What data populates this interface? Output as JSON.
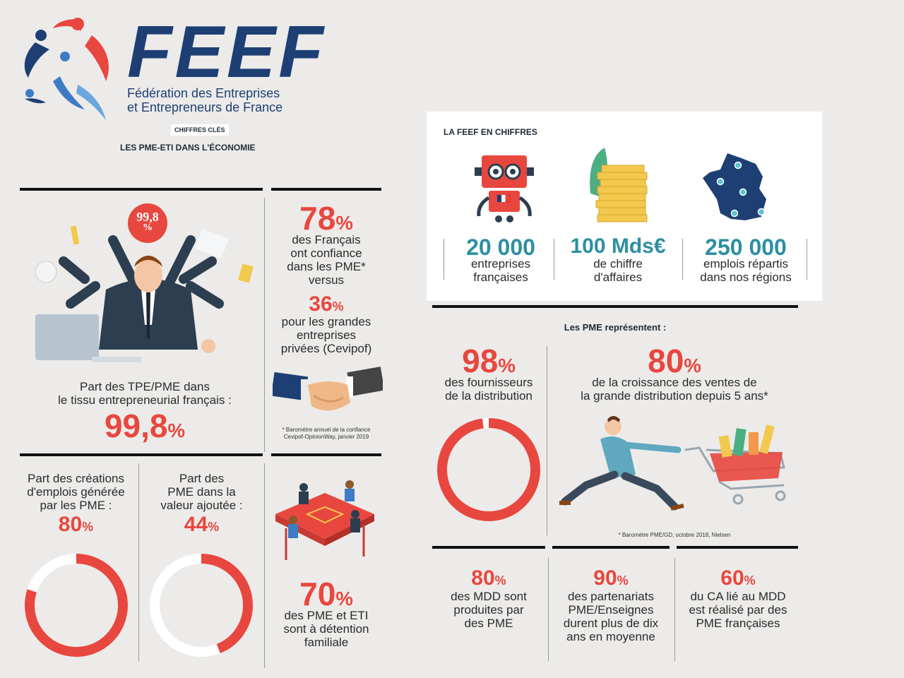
{
  "brand": {
    "name": "FEEF",
    "subtitle_line1": "Fédération des Entreprises",
    "subtitle_line2": "et Entrepreneurs de France"
  },
  "header": {
    "badge": "CHIFFRES CLÉS",
    "title": "LES PME-ETI DANS L'ÉCONOMIE"
  },
  "left": {
    "circle_badge": "99,8",
    "circle_badge_pct": "%",
    "share_label_1": "Part des TPE/PME dans",
    "share_label_2": "le tissu entrepreneurial français :",
    "share_value": "99,8",
    "share_pct": "%",
    "trust_value": "78",
    "trust_pct": "%",
    "trust_line1": "des Français",
    "trust_line2": "ont confiance",
    "trust_line3": "dans les PME*",
    "trust_line4": "versus",
    "big_value": "36",
    "big_pct": "%",
    "big_line1": "pour les grandes",
    "big_line2": "entreprises",
    "big_line3": "privées (Cevipof)",
    "footnote1": "* Baromètre annuel de la confiance",
    "footnote2": "Cevipof-OpinionWay, janvier 2019",
    "jobs_line1": "Part des créations",
    "jobs_line2": "d'emplois générée",
    "jobs_line3": "par les PME :",
    "jobs_value": "80",
    "jobs_pct": "%",
    "jobs_fraction": 0.8,
    "va_line1": "Part des",
    "va_line2": "PME dans la",
    "va_line3": "valeur ajoutée :",
    "va_value": "44",
    "va_pct": "%",
    "va_fraction": 0.44,
    "family_value": "70",
    "family_pct": "%",
    "family_line1": "des PME et ETI",
    "family_line2": "sont à détention",
    "family_line3": "familiale"
  },
  "feef": {
    "title": "LA FEEF EN CHIFFRES",
    "stat1_value": "20 000",
    "stat1_line1": "entreprises",
    "stat1_line2": "françaises",
    "stat2_value": "100 Mds€",
    "stat2_line1": "de chiffre",
    "stat2_line2": "d'affaires",
    "stat3_value": "250 000",
    "stat3_line1": "emplois répartis",
    "stat3_line2": "dans nos régions"
  },
  "pme": {
    "title": "Les PME représentent :",
    "supp_value": "98",
    "supp_pct": "%",
    "supp_line1": "des fournisseurs",
    "supp_line2": "de la distribution",
    "supp_fraction": 0.98,
    "growth_value": "80",
    "growth_pct": "%",
    "growth_line1": "de la croissance des ventes de",
    "growth_line2": "la grande distribution depuis 5 ans*",
    "footnote": "* Baromètre PME/GD, octobre 2018, Nielsen",
    "mdd_value": "80",
    "mdd_pct": "%",
    "mdd_line1": "des MDD sont",
    "mdd_line2": "produites par",
    "mdd_line3": "des PME",
    "part_value": "90",
    "part_pct": "%",
    "part_line1": "des partenariats",
    "part_line2": "PME/Enseignes",
    "part_line3": "durent plus de dix",
    "part_line4": "ans en moyenne",
    "ca_value": "60",
    "ca_pct": "%",
    "ca_line1": "du CA lié au MDD",
    "ca_line2": "est réalisé par des",
    "ca_line3": "PME françaises"
  },
  "colors": {
    "accent": "#e8473f",
    "navy": "#1e3f73",
    "background": "#ecebe9",
    "teal": "#2d8fa3"
  }
}
